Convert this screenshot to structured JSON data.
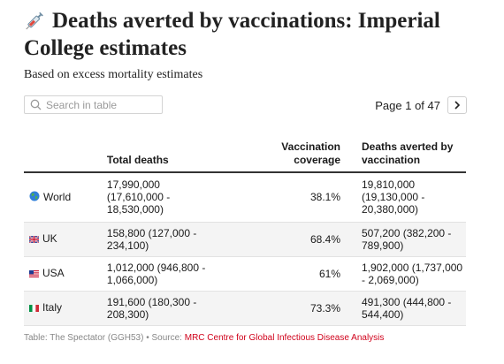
{
  "header": {
    "title": "Deaths averted by vaccinations: Imperial College estimates",
    "subtitle": "Based on excess mortality estimates"
  },
  "search": {
    "placeholder": "Search in table"
  },
  "pager": {
    "text": "Page 1 of 47",
    "next_label": "›"
  },
  "table": {
    "columns": [
      "",
      "Total deaths",
      "Vaccination coverage",
      "Deaths averted by vaccination"
    ],
    "rows": [
      {
        "icon": "globe-icon",
        "country": "World",
        "total": "17,990,000 (17,610,000 - 18,530,000)",
        "coverage": "38.1%",
        "averted": "19,810,000 (19,130,000 - 20,380,000)"
      },
      {
        "icon": "uk-flag-icon",
        "country": "UK",
        "total": "158,800 (127,000 - 234,100)",
        "coverage": "68.4%",
        "averted": "507,200 (382,200 - 789,900)"
      },
      {
        "icon": "us-flag-icon",
        "country": "USA",
        "total": "1,012,000 (946,800 - 1,066,000)",
        "coverage": "61%",
        "averted": "1,902,000 (1,737,000 - 2,069,000)"
      },
      {
        "icon": "italy-flag-icon",
        "country": "Italy",
        "total": "191,600 (180,300 - 208,300)",
        "coverage": "73.3%",
        "averted": "491,300 (444,800 - 544,400)"
      }
    ]
  },
  "footer": {
    "prefix": "Table: The Spectator (GGH53) • Source: ",
    "source": "MRC Centre for Global Infectious Disease Analysis"
  }
}
